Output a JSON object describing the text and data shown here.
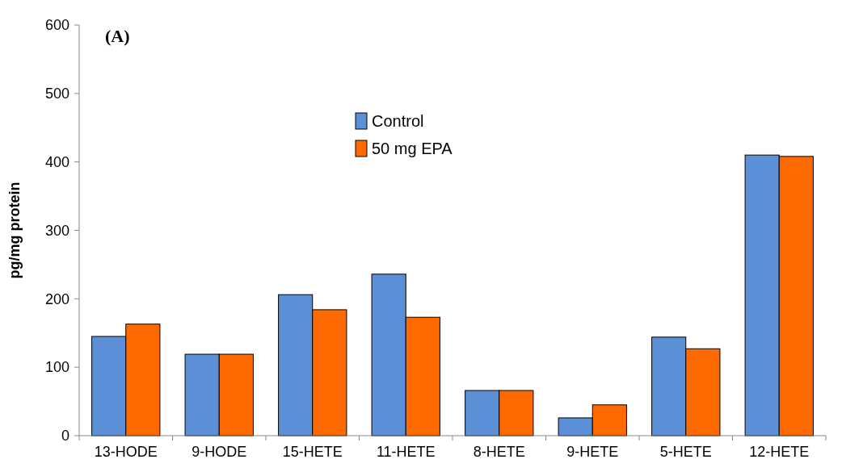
{
  "chart_data": {
    "type": "bar",
    "title": "(A)",
    "ylabel": "pg/mg protein",
    "categories": [
      "13-HODE",
      "9-HODE",
      "15-HETE",
      "11-HETE",
      "8-HETE",
      "9-HETE",
      "5-HETE",
      "12-HETE"
    ],
    "series": [
      {
        "name": "Control",
        "color": "#5b8fd6",
        "values": [
          145,
          119,
          206,
          236,
          66,
          26,
          144,
          410
        ]
      },
      {
        "name": "50 mg EPA",
        "color": "#ff6a00",
        "values": [
          163,
          119,
          184,
          173,
          66,
          45,
          127,
          408
        ]
      }
    ],
    "ylim": [
      0,
      600
    ],
    "yticks": [
      0,
      100,
      200,
      300,
      400,
      500,
      600
    ],
    "grid": false,
    "legend": "top"
  }
}
